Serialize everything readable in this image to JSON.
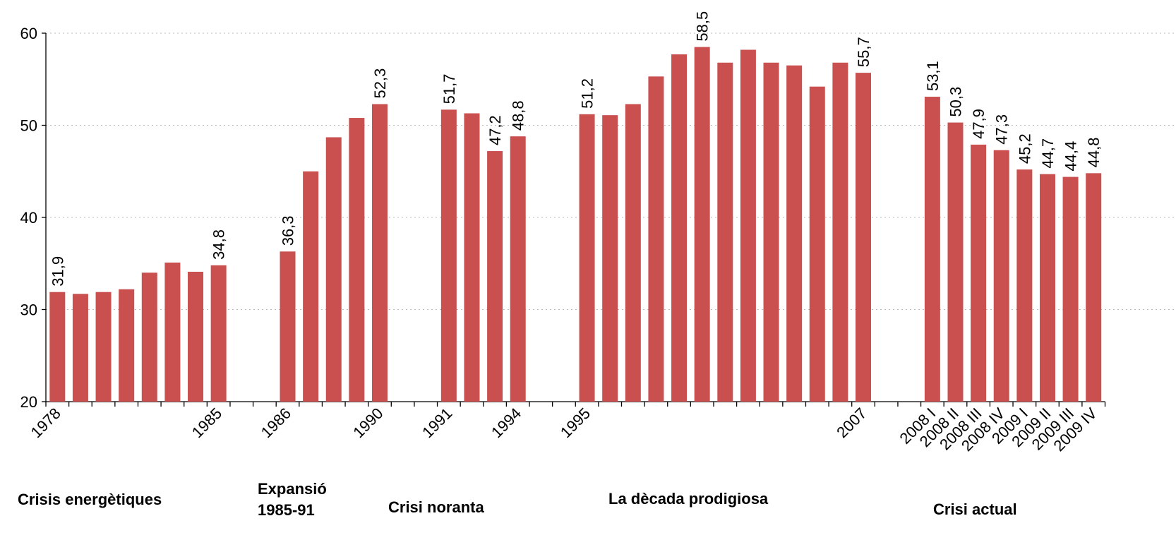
{
  "chart_data": {
    "type": "bar",
    "categories": [
      "1978",
      null,
      null,
      null,
      null,
      null,
      null,
      "1985",
      null,
      null,
      "1986",
      null,
      null,
      null,
      "1990",
      null,
      null,
      "1991",
      null,
      null,
      "1994",
      null,
      null,
      "1995",
      null,
      null,
      null,
      null,
      null,
      null,
      null,
      null,
      null,
      null,
      null,
      "2007",
      null,
      null,
      "2008 I",
      "2008 II",
      "2008 III",
      "2008 IV",
      "2009 I",
      "2009 II",
      "2009 III",
      "2009 IV"
    ],
    "values": [
      31.9,
      31.7,
      31.9,
      32.2,
      34.0,
      35.1,
      34.1,
      34.8,
      null,
      null,
      36.3,
      45.0,
      48.7,
      50.8,
      52.3,
      null,
      null,
      51.7,
      51.3,
      47.2,
      48.8,
      null,
      null,
      51.2,
      51.1,
      52.3,
      55.3,
      57.7,
      58.5,
      56.8,
      58.2,
      56.8,
      56.5,
      54.2,
      56.8,
      55.7,
      null,
      null,
      53.1,
      50.3,
      47.9,
      47.3,
      45.2,
      44.7,
      44.4,
      44.8
    ],
    "value_labels": [
      "31,9",
      null,
      null,
      null,
      null,
      null,
      null,
      "34,8",
      null,
      null,
      "36,3",
      null,
      null,
      null,
      "52,3",
      null,
      null,
      "51,7",
      null,
      "47,2",
      "48,8",
      null,
      null,
      "51,2",
      null,
      null,
      null,
      null,
      "58,5",
      null,
      null,
      null,
      null,
      null,
      null,
      "55,7",
      null,
      null,
      "53,1",
      "50,3",
      "47,9",
      "47,3",
      "45,2",
      "44,7",
      "44,4",
      "44,8"
    ],
    "color": "#c9504f",
    "ylim": [
      20,
      60
    ],
    "yticks": [
      20,
      30,
      40,
      50,
      60
    ],
    "grid": true,
    "annotations": [
      [
        "Crisis energètiques"
      ],
      [
        "Expansió",
        "1985-91"
      ],
      [
        "Crisi noranta"
      ],
      [
        "La dècada prodigiosa"
      ],
      [
        "Crisi actual"
      ]
    ]
  }
}
